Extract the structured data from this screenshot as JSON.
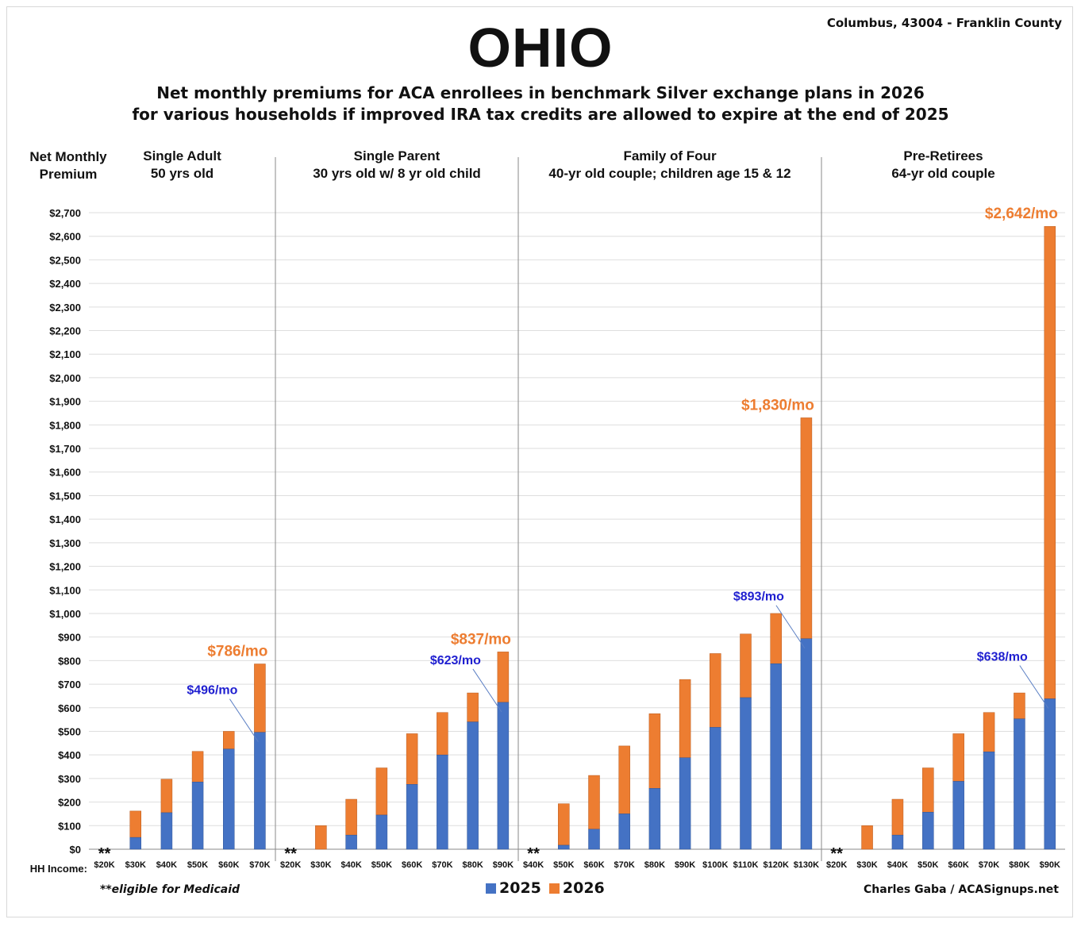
{
  "title": "OHIO",
  "location": "Columbus, 43004 - Franklin County",
  "subtitle_line1": "Net monthly premiums for ACA enrollees in benchmark Silver exchange plans in 2026",
  "subtitle_line2": "for various households if improved IRA tax credits are allowed to expire at the end of 2025",
  "footnote": "**eligible for Medicaid",
  "credit": "Charles Gaba / ACASignups.net",
  "colors": {
    "y2025": "#4472c4",
    "y2026": "#ed7d31",
    "label2025": "#1f1fd0",
    "label2026": "#ed7d31"
  },
  "chart_data": {
    "type": "bar",
    "stacked": true,
    "ylabel": "Net Monthly Premium",
    "xlabel": "HH Income:",
    "ylim": [
      0,
      2700
    ],
    "yticks": [
      "$0",
      "$100",
      "$200",
      "$300",
      "$400",
      "$500",
      "$600",
      "$700",
      "$800",
      "$900",
      "$1,000",
      "$1,100",
      "$1,200",
      "$1,300",
      "$1,400",
      "$1,500",
      "$1,600",
      "$1,700",
      "$1,800",
      "$1,900",
      "$2,000",
      "$2,100",
      "$2,200",
      "$2,300",
      "$2,400",
      "$2,500",
      "$2,600",
      "$2,700"
    ],
    "legend": [
      "2025",
      "2026"
    ],
    "medicaid_marker": "**",
    "groups": [
      {
        "title_line1": "Single Adult",
        "title_line2": "50 yrs old",
        "categories": [
          "$20K",
          "$30K",
          "$40K",
          "$50K",
          "$60K",
          "$70K"
        ],
        "y2025": [
          0,
          50,
          155,
          285,
          425,
          496
        ],
        "y2026": [
          0,
          162,
          297,
          415,
          500,
          786
        ],
        "medicaid": [
          true,
          false,
          false,
          false,
          false,
          false
        ],
        "label_2025": "$496/mo",
        "label_2026": "$786/mo"
      },
      {
        "title_line1": "Single Parent",
        "title_line2": "30 yrs old w/ 8 yr old child",
        "categories": [
          "$20K",
          "$30K",
          "$40K",
          "$50K",
          "$60K",
          "$70K",
          "$80K",
          "$90K"
        ],
        "y2025": [
          0,
          0,
          60,
          145,
          275,
          400,
          540,
          623
        ],
        "y2026": [
          0,
          100,
          212,
          345,
          490,
          580,
          663,
          837
        ],
        "medicaid": [
          true,
          false,
          false,
          false,
          false,
          false,
          false,
          false
        ],
        "label_2025": "$623/mo",
        "label_2026": "$837/mo"
      },
      {
        "title_line1": "Family of Four",
        "title_line2": "40-yr old couple; children age 15 & 12",
        "categories": [
          "$40K",
          "$50K",
          "$60K",
          "$70K",
          "$80K",
          "$90K",
          "$100K",
          "$110K",
          "$120K",
          "$130K"
        ],
        "y2025": [
          0,
          17,
          85,
          150,
          258,
          388,
          517,
          643,
          787,
          893
        ],
        "y2026": [
          0,
          193,
          313,
          438,
          575,
          720,
          830,
          913,
          1000,
          1830
        ],
        "medicaid": [
          true,
          false,
          false,
          false,
          false,
          false,
          false,
          false,
          false,
          false
        ],
        "label_2025": "$893/mo",
        "label_2026": "$1,830/mo"
      },
      {
        "title_line1": "Pre-Retirees",
        "title_line2": "64-yr old couple",
        "categories": [
          "$20K",
          "$30K",
          "$40K",
          "$50K",
          "$60K",
          "$70K",
          "$80K",
          "$90K"
        ],
        "y2025": [
          0,
          0,
          60,
          157,
          288,
          413,
          553,
          638
        ],
        "y2026": [
          0,
          100,
          212,
          345,
          490,
          580,
          663,
          2642
        ],
        "medicaid": [
          true,
          false,
          false,
          false,
          false,
          false,
          false,
          false
        ],
        "label_2025": "$638/mo",
        "label_2026": "$2,642/mo"
      }
    ]
  }
}
